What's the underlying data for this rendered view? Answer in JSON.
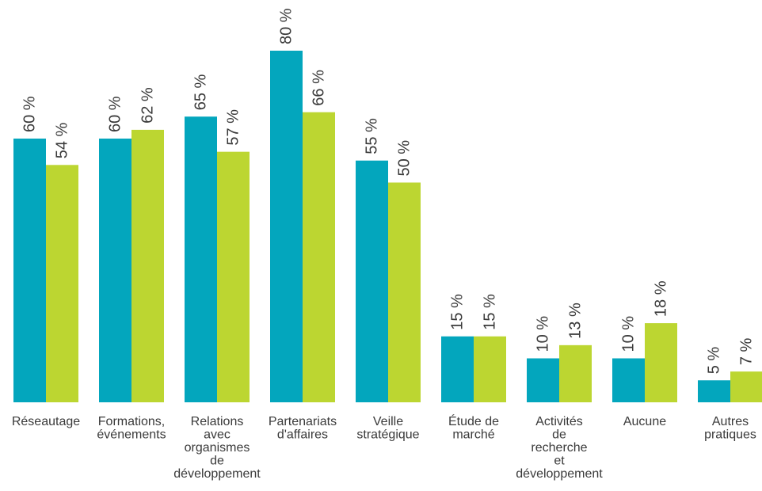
{
  "chart_data": {
    "type": "bar",
    "title": "",
    "xlabel": "",
    "ylabel": "",
    "ylim": [
      0,
      80
    ],
    "grid": false,
    "legend": "none",
    "categories": [
      "Réseautage",
      "Formations, événements",
      "Relations avec organismes de développement",
      "Partenariats d'affaires",
      "Veille stratégique",
      "Étude de marché",
      "Activités de recherche et développement",
      "Aucune",
      "Autres pratiques"
    ],
    "category_label_lines": [
      [
        "Réseautage"
      ],
      [
        "Formations,",
        "événements"
      ],
      [
        "Relations",
        "avec",
        "organismes",
        "de",
        "développement"
      ],
      [
        "Partenariats",
        "d'affaires"
      ],
      [
        "Veille",
        "stratégique"
      ],
      [
        "Étude de",
        "marché"
      ],
      [
        "Activités",
        "de",
        "recherche",
        "et",
        "développement"
      ],
      [
        "Aucune"
      ],
      [
        "Autres",
        "pratiques"
      ]
    ],
    "series": [
      {
        "color": "#03a6bd",
        "values": [
          60,
          60,
          65,
          80,
          55,
          15,
          10,
          10,
          5
        ],
        "labels": [
          "60 %",
          "60 %",
          "65 %",
          "80 %",
          "55 %",
          "15 %",
          "10 %",
          "10 %",
          "5 %"
        ]
      },
      {
        "color": "#bcd631",
        "values": [
          54,
          62,
          57,
          66,
          50,
          15,
          13,
          18,
          7
        ],
        "labels": [
          "54 %",
          "62 %",
          "57 %",
          "66 %",
          "50 %",
          "15 %",
          "13 %",
          "18 %",
          "7 %"
        ]
      }
    ]
  }
}
